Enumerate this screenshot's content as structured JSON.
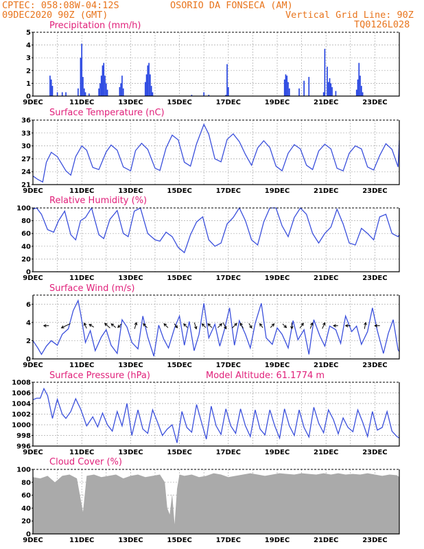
{
  "header": {
    "line1_left": "CPTEC:   058:08W-04:12S",
    "line1_right": "OSORIO DA FONSECA (AM)",
    "line2_left": "09DEC2020 90Z (GMT)",
    "line2_right": "Vertical Grid Line: 90Z",
    "line3_right": "TQ0126L028"
  },
  "x_ticks": [
    "9DEC",
    "11DEC",
    "13DEC",
    "15DEC",
    "17DEC",
    "19DEC",
    "21DEC",
    "23DEC"
  ],
  "chart_data": [
    {
      "type": "bar",
      "title": "Precipitation (mm/h)",
      "ylim": [
        0,
        5
      ],
      "yticks": [
        0,
        1,
        2,
        3,
        4,
        5
      ],
      "x_days": [
        0,
        15
      ],
      "bars": [
        [
          0.7,
          1.6
        ],
        [
          0.75,
          1.3
        ],
        [
          0.8,
          0.8
        ],
        [
          1.0,
          0.3
        ],
        [
          1.2,
          0.3
        ],
        [
          1.35,
          0.3
        ],
        [
          1.85,
          0.6
        ],
        [
          1.95,
          3.0
        ],
        [
          2.0,
          4.1
        ],
        [
          2.05,
          1.5
        ],
        [
          2.1,
          0.6
        ],
        [
          2.15,
          0.3
        ],
        [
          2.3,
          0.2
        ],
        [
          2.7,
          0.6
        ],
        [
          2.75,
          1.0
        ],
        [
          2.8,
          1.6
        ],
        [
          2.85,
          2.4
        ],
        [
          2.9,
          2.6
        ],
        [
          2.95,
          1.6
        ],
        [
          3.0,
          1.0
        ],
        [
          3.05,
          0.5
        ],
        [
          3.55,
          0.7
        ],
        [
          3.6,
          1.0
        ],
        [
          3.65,
          1.6
        ],
        [
          3.7,
          0.6
        ],
        [
          4.6,
          1.1
        ],
        [
          4.65,
          1.7
        ],
        [
          4.7,
          2.4
        ],
        [
          4.75,
          2.6
        ],
        [
          4.8,
          1.7
        ],
        [
          4.85,
          0.8
        ],
        [
          4.9,
          0.3
        ],
        [
          6.5,
          0.1
        ],
        [
          7.0,
          0.3
        ],
        [
          7.2,
          0.1
        ],
        [
          7.9,
          0.1
        ],
        [
          7.95,
          2.5
        ],
        [
          8.0,
          0.7
        ],
        [
          10.3,
          1.3
        ],
        [
          10.35,
          1.7
        ],
        [
          10.4,
          1.6
        ],
        [
          10.45,
          1.1
        ],
        [
          10.5,
          0.6
        ],
        [
          10.9,
          0.6
        ],
        [
          11.1,
          1.2
        ],
        [
          11.3,
          1.5
        ],
        [
          11.9,
          0.3
        ],
        [
          11.95,
          3.7
        ],
        [
          12.05,
          2.3
        ],
        [
          12.1,
          1.1
        ],
        [
          12.15,
          1.4
        ],
        [
          12.2,
          1.0
        ],
        [
          12.25,
          0.7
        ],
        [
          12.4,
          0.4
        ],
        [
          13.25,
          0.5
        ],
        [
          13.3,
          1.3
        ],
        [
          13.35,
          2.6
        ],
        [
          13.4,
          1.6
        ],
        [
          13.45,
          0.8
        ],
        [
          13.5,
          0.3
        ]
      ]
    },
    {
      "type": "line",
      "title": "Surface Temperature (nC)",
      "ylim": [
        21,
        36
      ],
      "yticks": [
        21,
        24,
        27,
        30,
        33,
        36
      ],
      "x": [
        0,
        0.2,
        0.4,
        0.55,
        0.75,
        1.0,
        1.35,
        1.55,
        1.75,
        2.0,
        2.2,
        2.45,
        2.7,
        3.0,
        3.2,
        3.45,
        3.7,
        4.0,
        4.2,
        4.45,
        4.7,
        5.0,
        5.2,
        5.45,
        5.7,
        5.95,
        6.2,
        6.45,
        6.7,
        7.0,
        7.2,
        7.45,
        7.7,
        7.95,
        8.2,
        8.45,
        8.7,
        8.95,
        9.2,
        9.45,
        9.7,
        9.95,
        10.2,
        10.45,
        10.7,
        10.95,
        11.2,
        11.45,
        11.7,
        11.95,
        12.2,
        12.45,
        12.7,
        12.95,
        13.2,
        13.45,
        13.7,
        13.95,
        14.2,
        14.45,
        14.7,
        14.95,
        15.0
      ],
      "values": [
        23.0,
        22.2,
        21.6,
        26.2,
        28.5,
        27.5,
        24.2,
        23.2,
        27.5,
        30.0,
        29.0,
        25.0,
        24.5,
        28.6,
        30.2,
        29.0,
        25.1,
        24.2,
        28.9,
        30.6,
        29.2,
        24.8,
        24.3,
        29.5,
        32.5,
        31.4,
        26.2,
        25.3,
        30.5,
        35.0,
        32.7,
        27.0,
        26.3,
        31.5,
        32.8,
        31.0,
        28.0,
        25.5,
        29.5,
        31.2,
        29.6,
        25.3,
        24.2,
        28.3,
        30.3,
        29.3,
        25.5,
        24.5,
        28.8,
        30.4,
        29.3,
        24.8,
        24.2,
        28.3,
        30.0,
        29.3,
        25.1,
        24.4,
        27.8,
        30.5,
        29.2,
        25.1,
        31.3
      ]
    },
    {
      "type": "line",
      "title": "Relative Humidity (%)",
      "ylim": [
        0,
        100
      ],
      "yticks": [
        0,
        20,
        40,
        60,
        80,
        100
      ],
      "x": [
        0,
        0.15,
        0.35,
        0.6,
        0.85,
        1.05,
        1.3,
        1.55,
        1.75,
        1.95,
        2.15,
        2.4,
        2.7,
        2.9,
        3.15,
        3.45,
        3.7,
        3.9,
        4.15,
        4.4,
        4.7,
        5.0,
        5.2,
        5.45,
        5.7,
        5.95,
        6.2,
        6.45,
        6.7,
        6.95,
        7.2,
        7.45,
        7.7,
        7.95,
        8.2,
        8.45,
        8.7,
        8.95,
        9.2,
        9.45,
        9.7,
        9.95,
        10.2,
        10.45,
        10.7,
        10.95,
        11.2,
        11.45,
        11.7,
        11.95,
        12.2,
        12.45,
        12.7,
        12.95,
        13.2,
        13.45,
        13.7,
        13.95,
        14.2,
        14.45,
        14.7,
        14.95,
        15.0
      ],
      "values": [
        98,
        100,
        90,
        66,
        62,
        80,
        95,
        58,
        50,
        80,
        85,
        100,
        58,
        52,
        82,
        96,
        60,
        55,
        95,
        100,
        60,
        50,
        48,
        62,
        55,
        38,
        30,
        58,
        78,
        86,
        50,
        40,
        45,
        75,
        85,
        100,
        80,
        50,
        42,
        78,
        100,
        100,
        72,
        55,
        85,
        100,
        90,
        60,
        45,
        60,
        70,
        98,
        75,
        45,
        42,
        68,
        60,
        50,
        86,
        90,
        60,
        55,
        58
      ]
    },
    {
      "type": "line",
      "title": "Surface Wind (m/s)",
      "ylim": [
        0,
        7
      ],
      "yticks": [
        0,
        2,
        4,
        6
      ],
      "x": [
        0,
        0.2,
        0.35,
        0.55,
        0.75,
        1.0,
        1.2,
        1.45,
        1.65,
        1.85,
        1.95,
        2.15,
        2.35,
        2.55,
        2.8,
        3.0,
        3.2,
        3.45,
        3.65,
        3.85,
        4.05,
        4.3,
        4.5,
        4.7,
        4.95,
        5.15,
        5.35,
        5.55,
        5.8,
        6.0,
        6.2,
        6.4,
        6.6,
        6.8,
        7.0,
        7.2,
        7.45,
        7.65,
        7.85,
        8.05,
        8.25,
        8.45,
        8.7,
        8.9,
        9.1,
        9.35,
        9.55,
        9.8,
        10.0,
        10.2,
        10.45,
        10.65,
        10.85,
        11.1,
        11.3,
        11.5,
        11.75,
        11.95,
        12.15,
        12.4,
        12.6,
        12.8,
        13.05,
        13.25,
        13.45,
        13.7,
        13.9,
        14.1,
        14.35,
        14.55,
        14.75,
        14.95,
        15.0
      ],
      "values": [
        2.0,
        1.2,
        0.5,
        1.4,
        2.0,
        1.5,
        2.7,
        3.3,
        5.3,
        6.4,
        5.0,
        1.8,
        3.1,
        0.9,
        2.4,
        3.2,
        1.5,
        0.6,
        4.3,
        3.5,
        1.8,
        1.1,
        4.7,
        2.4,
        0.3,
        3.7,
        2.2,
        1.2,
        3.4,
        4.7,
        1.5,
        4.1,
        0.9,
        2.7,
        6.1,
        2.3,
        3.8,
        1.4,
        3.3,
        5.6,
        1.5,
        4.2,
        2.7,
        1.2,
        3.9,
        6.1,
        2.3,
        1.6,
        3.4,
        2.7,
        1.2,
        4.2,
        2.1,
        3.2,
        0.5,
        4.3,
        2.5,
        1.4,
        3.6,
        3.2,
        1.7,
        4.7,
        3.0,
        3.6,
        1.6,
        3.0,
        5.6,
        3.1,
        0.6,
        2.8,
        4.3,
        1.0,
        0.8
      ]
    },
    {
      "type": "line",
      "title": "Surface Pressure (hPa)",
      "annotation": "Model Altitude: 61.1774 m",
      "ylim": [
        996,
        1008
      ],
      "yticks": [
        996,
        998,
        1000,
        1002,
        1004,
        1006,
        1008
      ],
      "x": [
        0,
        0.15,
        0.3,
        0.45,
        0.6,
        0.8,
        1.0,
        1.2,
        1.35,
        1.55,
        1.75,
        1.95,
        2.2,
        2.45,
        2.65,
        2.85,
        3.05,
        3.25,
        3.45,
        3.65,
        3.85,
        4.05,
        4.3,
        4.5,
        4.7,
        4.9,
        5.1,
        5.3,
        5.5,
        5.7,
        5.9,
        6.1,
        6.3,
        6.5,
        6.7,
        6.9,
        7.1,
        7.3,
        7.5,
        7.7,
        7.9,
        8.1,
        8.3,
        8.5,
        8.7,
        8.9,
        9.1,
        9.3,
        9.5,
        9.7,
        9.9,
        10.1,
        10.3,
        10.5,
        10.7,
        10.9,
        11.1,
        11.3,
        11.5,
        11.7,
        11.9,
        12.1,
        12.3,
        12.5,
        12.7,
        12.9,
        13.1,
        13.3,
        13.5,
        13.7,
        13.9,
        14.1,
        14.3,
        14.5,
        14.7,
        14.9,
        15.0
      ],
      "values": [
        1004.7,
        1005.0,
        1005.0,
        1006.8,
        1005.5,
        1001.2,
        1004.8,
        1002.0,
        1001.2,
        1002.5,
        1004.9,
        1003.0,
        999.8,
        1001.5,
        999.6,
        1002.2,
        1000.0,
        998.8,
        1002.5,
        999.8,
        1004.0,
        998.0,
        1002.8,
        999.2,
        998.4,
        1002.8,
        1000.5,
        998.0,
        999.2,
        1000.0,
        996.6,
        1002.5,
        999.5,
        998.6,
        1003.8,
        1000.5,
        997.3,
        1003.5,
        999.8,
        998.2,
        1003.0,
        999.8,
        998.4,
        1003.0,
        999.8,
        997.8,
        1002.8,
        999.2,
        998.1,
        1002.8,
        999.8,
        997.5,
        1003.0,
        999.8,
        998.0,
        1002.8,
        999.5,
        997.7,
        1003.3,
        1000.3,
        998.5,
        1002.8,
        1001.0,
        998.3,
        1001.3,
        999.5,
        998.7,
        1002.8,
        1000.5,
        997.8,
        1002.5,
        999.0,
        999.5,
        1002.5,
        998.8,
        997.8,
        997.5
      ]
    },
    {
      "type": "area",
      "title": "Cloud Cover (%)",
      "ylim": [
        0,
        100
      ],
      "yticks": [
        0,
        20,
        40,
        60,
        80,
        100
      ],
      "x": [
        0,
        0.3,
        0.6,
        0.9,
        1.2,
        1.5,
        1.8,
        2.05,
        2.2,
        2.5,
        2.8,
        3.1,
        3.4,
        3.7,
        4.0,
        4.3,
        4.6,
        4.9,
        5.2,
        5.4,
        5.5,
        5.6,
        5.7,
        5.8,
        5.9,
        6.0,
        6.2,
        6.5,
        6.8,
        7.1,
        7.4,
        7.7,
        8.0,
        8.3,
        8.6,
        8.9,
        9.2,
        9.5,
        9.8,
        10.1,
        10.4,
        10.7,
        11.0,
        11.3,
        11.6,
        11.9,
        12.2,
        12.5,
        12.8,
        13.1,
        13.4,
        13.7,
        14.0,
        14.3,
        14.6,
        14.9,
        15.0
      ],
      "values": [
        88,
        86,
        90,
        80,
        90,
        92,
        86,
        34,
        90,
        92,
        88,
        90,
        92,
        86,
        90,
        92,
        88,
        90,
        92,
        80,
        40,
        30,
        62,
        15,
        70,
        92,
        90,
        92,
        88,
        90,
        94,
        92,
        88,
        90,
        92,
        94,
        92,
        90,
        92,
        94,
        93,
        92,
        94,
        93,
        92,
        94,
        92,
        94,
        92,
        93,
        92,
        94,
        92,
        90,
        92,
        91,
        88
      ]
    }
  ],
  "wind_barbs": [
    {
      "day": 0.55,
      "u": -0.5,
      "v": 0.0
    },
    {
      "day": 1.35,
      "u": -2.5,
      "v": -1.2
    },
    {
      "day": 2.15,
      "u": -0.3,
      "v": 0.7
    },
    {
      "day": 2.4,
      "u": -0.5,
      "v": 0.3
    },
    {
      "day": 3.05,
      "u": -0.9,
      "v": 0.8
    },
    {
      "day": 3.3,
      "u": -0.6,
      "v": 0.5
    },
    {
      "day": 3.55,
      "u": -0.3,
      "v": -0.3
    },
    {
      "day": 4.2,
      "u": 0.3,
      "v": 1.0
    },
    {
      "day": 4.6,
      "u": -0.5,
      "v": 0.5
    },
    {
      "day": 5.45,
      "u": -0.5,
      "v": 0.5
    },
    {
      "day": 5.85,
      "u": 0.3,
      "v": -0.4
    },
    {
      "day": 6.25,
      "u": -0.4,
      "v": 0.4
    },
    {
      "day": 6.65,
      "u": 0.3,
      "v": -1.0
    },
    {
      "day": 7.0,
      "u": -0.4,
      "v": 0.4
    },
    {
      "day": 7.25,
      "u": -0.5,
      "v": 0.5
    },
    {
      "day": 7.65,
      "u": 0.5,
      "v": 0.5
    },
    {
      "day": 7.85,
      "u": 0.5,
      "v": -1.0
    },
    {
      "day": 8.25,
      "u": 0.7,
      "v": 0.7
    },
    {
      "day": 8.55,
      "u": -0.4,
      "v": 0.7
    },
    {
      "day": 8.9,
      "u": 0.3,
      "v": -0.5
    },
    {
      "day": 9.35,
      "u": -0.3,
      "v": 0.4
    },
    {
      "day": 9.8,
      "u": 0.4,
      "v": 0.4
    },
    {
      "day": 10.3,
      "u": 0.4,
      "v": -0.4
    },
    {
      "day": 10.6,
      "u": 0.0,
      "v": -0.8
    },
    {
      "day": 11.0,
      "u": 0.5,
      "v": 0.7
    },
    {
      "day": 11.4,
      "u": 0.3,
      "v": 0.8
    },
    {
      "day": 11.9,
      "u": 0.4,
      "v": 0.9
    },
    {
      "day": 12.4,
      "u": -0.3,
      "v": 0.0
    },
    {
      "day": 12.9,
      "u": -0.4,
      "v": 0.0
    },
    {
      "day": 13.6,
      "u": 0.2,
      "v": 1.0
    },
    {
      "day": 14.1,
      "u": -0.5,
      "v": 0.0
    }
  ]
}
